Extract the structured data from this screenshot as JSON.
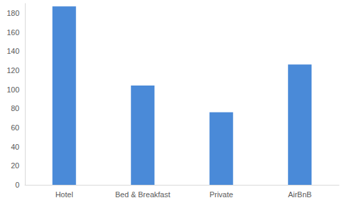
{
  "chart_data": {
    "type": "bar",
    "categories": [
      "Hotel",
      "Bed & Breakfast",
      "Private",
      "AirBnB"
    ],
    "values": [
      187,
      104,
      76,
      126
    ],
    "color": "#4a8ad8",
    "ylim": [
      0,
      190
    ],
    "yticks": [
      0,
      20,
      40,
      60,
      80,
      100,
      120,
      140,
      160,
      180
    ],
    "grid": false
  }
}
